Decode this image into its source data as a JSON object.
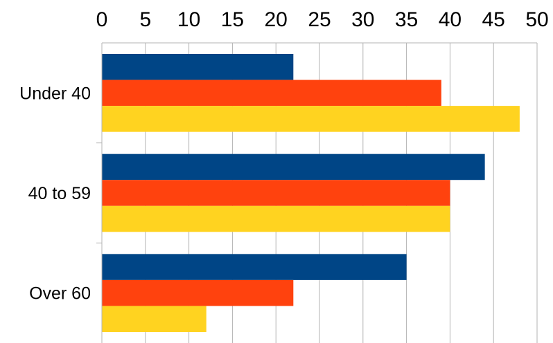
{
  "chart_data": {
    "type": "bar",
    "orientation": "horizontal",
    "categories": [
      "Under 40",
      "40 to 59",
      "Over 60"
    ],
    "series": [
      {
        "values": [
          22,
          44,
          35
        ],
        "color": "#004586"
      },
      {
        "values": [
          39,
          40,
          22
        ],
        "color": "#ff420e"
      },
      {
        "values": [
          48,
          40,
          12
        ],
        "color": "#ffd320"
      }
    ],
    "xlim": [
      0,
      50
    ],
    "x_ticks": [
      "0",
      "5",
      "10",
      "15",
      "20",
      "25",
      "30",
      "35",
      "40",
      "45",
      "50"
    ],
    "x_axis_position": "top",
    "grid": true,
    "legend": "none",
    "title": "",
    "xlabel": "",
    "ylabel": ""
  }
}
